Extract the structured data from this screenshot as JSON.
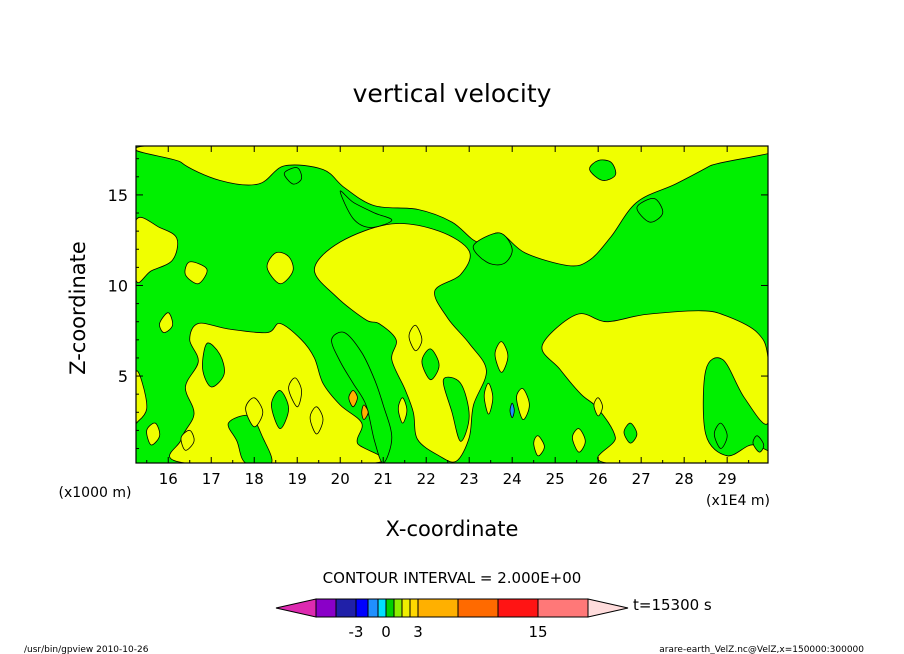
{
  "chart_data": {
    "type": "heatmap",
    "title": "vertical velocity",
    "xlabel": "X-coordinate",
    "ylabel": "Z-coordinate",
    "xlim": [
      15.25,
      29.95
    ],
    "ylim": [
      0.2,
      17.7
    ],
    "x_ticks": [
      16,
      17,
      18,
      19,
      20,
      21,
      22,
      23,
      24,
      25,
      26,
      27,
      28,
      29
    ],
    "y_ticks": [
      5,
      10,
      15
    ],
    "y_unit_note": "(x1000 m)",
    "x_unit_note": "(x1E4 m)",
    "contour_interval_text": "CONTOUR INTERVAL = 2.000E+00",
    "time_label": "t=15300 s",
    "footer_left": "/usr/bin/gpview   2010-10-26",
    "footer_right": "arare-earth_VelZ.nc@VelZ,x=150000:300000",
    "colorbar": {
      "colors": [
        "#dd2ab0",
        "#8a00c8",
        "#2020a8",
        "#0000ff",
        "#2090ff",
        "#00e0ff",
        "#00d000",
        "#8cee00",
        "#f0ee00",
        "#ffd800",
        "#ffb000",
        "#ff6a00",
        "#ff1414",
        "#ff7878",
        "#ffbcc6",
        "#ffdcdc"
      ],
      "tick_labels": [
        "-3",
        "0",
        "3",
        "15"
      ]
    },
    "field_colors": {
      "positive": "#f0ff00",
      "negative": "#00f000",
      "line": "#000000"
    },
    "regions": [
      {
        "sign": "positive",
        "points": [
          [
            16.2,
            17.8
          ],
          [
            16.3,
            16.8
          ],
          [
            17.2,
            15.8
          ],
          [
            18.1,
            15.6
          ],
          [
            18.7,
            16.6
          ],
          [
            19.6,
            16.4
          ],
          [
            20.1,
            15.4
          ],
          [
            20.8,
            14.4
          ],
          [
            21.8,
            14.2
          ],
          [
            22.6,
            13.5
          ],
          [
            23.2,
            12.4
          ],
          [
            23.7,
            12.9
          ],
          [
            24.3,
            11.8
          ],
          [
            25.3,
            11.1
          ],
          [
            25.8,
            11.4
          ],
          [
            26.3,
            12.7
          ],
          [
            26.9,
            14.6
          ],
          [
            27.8,
            15.6
          ],
          [
            28.6,
            16.6
          ],
          [
            29.5,
            17.8
          ]
        ]
      },
      {
        "sign": "positive",
        "points": [
          [
            16.7,
            7.9
          ],
          [
            17.4,
            7.6
          ],
          [
            18.3,
            7.4
          ],
          [
            18.6,
            7.9
          ],
          [
            19.1,
            7.0
          ],
          [
            19.4,
            6.0
          ],
          [
            19.6,
            4.6
          ],
          [
            20.0,
            3.4
          ],
          [
            20.5,
            2.4
          ],
          [
            20.4,
            1.3
          ],
          [
            20.8,
            0.2
          ],
          [
            16.4,
            0.2
          ],
          [
            16.3,
            1.5
          ],
          [
            16.6,
            2.9
          ],
          [
            16.4,
            4.4
          ],
          [
            16.7,
            5.8
          ],
          [
            16.5,
            7.0
          ]
        ]
      },
      {
        "sign": "positive",
        "points": [
          [
            19.4,
            10.9
          ],
          [
            19.9,
            9.4
          ],
          [
            20.6,
            8.1
          ],
          [
            20.9,
            7.9
          ],
          [
            21.3,
            7.0
          ],
          [
            21.2,
            5.9
          ],
          [
            21.5,
            4.3
          ],
          [
            21.7,
            3.0
          ],
          [
            21.8,
            1.5
          ],
          [
            22.3,
            0.6
          ],
          [
            22.7,
            0.3
          ],
          [
            23.0,
            1.6
          ],
          [
            23.1,
            3.4
          ],
          [
            23.4,
            5.3
          ],
          [
            23.0,
            6.8
          ],
          [
            22.5,
            8.2
          ],
          [
            22.2,
            9.7
          ],
          [
            22.8,
            10.6
          ],
          [
            23.0,
            11.9
          ],
          [
            22.3,
            13.0
          ],
          [
            21.2,
            13.4
          ],
          [
            20.0,
            12.4
          ]
        ]
      },
      {
        "sign": "positive",
        "points": [
          [
            25.5,
            8.4
          ],
          [
            26.2,
            8.0
          ],
          [
            27.1,
            8.4
          ],
          [
            28.4,
            8.6
          ],
          [
            29.0,
            8.3
          ],
          [
            29.7,
            7.4
          ],
          [
            29.95,
            6.0
          ],
          [
            29.95,
            2.4
          ],
          [
            29.4,
            3.8
          ],
          [
            28.9,
            5.9
          ],
          [
            28.5,
            5.3
          ],
          [
            28.5,
            1.8
          ],
          [
            29.0,
            0.6
          ],
          [
            29.6,
            1.2
          ],
          [
            29.95,
            0.2
          ],
          [
            26.2,
            0.2
          ],
          [
            26.4,
            1.6
          ],
          [
            26.0,
            3.2
          ],
          [
            25.6,
            4.0
          ],
          [
            25.1,
            5.4
          ],
          [
            24.7,
            6.7
          ]
        ]
      },
      {
        "sign": "positive",
        "points": [
          [
            15.25,
            13.6
          ],
          [
            15.8,
            13.2
          ],
          [
            16.2,
            12.6
          ],
          [
            16.1,
            11.4
          ],
          [
            15.6,
            10.8
          ],
          [
            15.25,
            10.3
          ]
        ]
      },
      {
        "sign": "positive",
        "points": [
          [
            18.5,
            11.8
          ],
          [
            18.3,
            11.0
          ],
          [
            18.6,
            10.1
          ],
          [
            18.9,
            10.8
          ],
          [
            18.8,
            11.6
          ]
        ]
      },
      {
        "sign": "positive",
        "points": [
          [
            16.5,
            11.3
          ],
          [
            16.4,
            10.6
          ],
          [
            16.7,
            10.1
          ],
          [
            16.9,
            10.9
          ]
        ]
      },
      {
        "sign": "negative",
        "points": [
          [
            20.0,
            15.2
          ],
          [
            20.3,
            14.6
          ],
          [
            20.8,
            14.0
          ],
          [
            21.2,
            13.6
          ],
          [
            20.7,
            13.2
          ],
          [
            20.3,
            13.7
          ]
        ]
      },
      {
        "sign": "negative",
        "points": [
          [
            18.7,
            16.2
          ],
          [
            18.9,
            15.6
          ],
          [
            19.1,
            15.9
          ],
          [
            19.0,
            16.5
          ]
        ]
      },
      {
        "sign": "negative",
        "points": [
          [
            25.8,
            16.4
          ],
          [
            26.1,
            15.8
          ],
          [
            26.4,
            16.1
          ],
          [
            26.3,
            16.8
          ],
          [
            26.0,
            16.9
          ]
        ]
      },
      {
        "sign": "negative",
        "points": [
          [
            23.1,
            12.2
          ],
          [
            23.4,
            11.3
          ],
          [
            23.8,
            11.2
          ],
          [
            24.0,
            12.0
          ],
          [
            23.7,
            12.9
          ]
        ]
      },
      {
        "sign": "negative",
        "points": [
          [
            26.9,
            14.3
          ],
          [
            27.2,
            13.5
          ],
          [
            27.5,
            14.0
          ],
          [
            27.3,
            14.8
          ]
        ]
      },
      {
        "sign": "negative",
        "points": [
          [
            20.0,
            5.8
          ],
          [
            20.3,
            4.6
          ],
          [
            20.6,
            3.4
          ],
          [
            20.8,
            1.4
          ],
          [
            21.0,
            0.2
          ],
          [
            21.2,
            1.6
          ],
          [
            21.0,
            3.4
          ],
          [
            20.8,
            4.8
          ],
          [
            20.5,
            6.3
          ],
          [
            20.1,
            7.4
          ],
          [
            19.8,
            7.0
          ]
        ]
      },
      {
        "sign": "negative",
        "points": [
          [
            16.9,
            6.8
          ],
          [
            17.2,
            6.2
          ],
          [
            17.3,
            5.1
          ],
          [
            17.0,
            4.4
          ],
          [
            16.8,
            5.4
          ]
        ]
      },
      {
        "sign": "negative",
        "points": [
          [
            17.4,
            2.4
          ],
          [
            17.6,
            1.4
          ],
          [
            17.8,
            0.2
          ],
          [
            18.4,
            0.2
          ],
          [
            18.2,
            1.6
          ],
          [
            17.9,
            2.8
          ]
        ]
      },
      {
        "sign": "negative",
        "points": [
          [
            22.4,
            4.8
          ],
          [
            22.6,
            3.0
          ],
          [
            22.8,
            1.4
          ],
          [
            23.0,
            2.8
          ],
          [
            22.8,
            4.6
          ]
        ]
      },
      {
        "sign": "negative",
        "points": [
          [
            18.4,
            3.4
          ],
          [
            18.6,
            2.1
          ],
          [
            18.8,
            3.2
          ],
          [
            18.6,
            4.2
          ]
        ]
      },
      {
        "sign": "negative",
        "points": [
          [
            21.9,
            5.8
          ],
          [
            22.1,
            4.8
          ],
          [
            22.3,
            5.6
          ],
          [
            22.1,
            6.5
          ]
        ]
      },
      {
        "sign": "positive",
        "points": [
          [
            15.25,
            5.2
          ],
          [
            15.4,
            4.6
          ],
          [
            15.5,
            3.2
          ],
          [
            15.3,
            2.5
          ],
          [
            15.25,
            2.7
          ]
        ]
      },
      {
        "sign": "positive",
        "points": [
          [
            15.5,
            2.0
          ],
          [
            15.6,
            1.2
          ],
          [
            15.8,
            1.7
          ],
          [
            15.7,
            2.4
          ]
        ]
      },
      {
        "sign": "positive",
        "points": [
          [
            15.8,
            7.9
          ],
          [
            15.9,
            7.4
          ],
          [
            16.1,
            7.8
          ],
          [
            16.0,
            8.5
          ]
        ]
      },
      {
        "sign": "positive",
        "points": [
          [
            16.3,
            1.6
          ],
          [
            16.4,
            0.9
          ],
          [
            16.6,
            1.4
          ],
          [
            16.5,
            2.0
          ]
        ]
      },
      {
        "sign": "positive",
        "points": [
          [
            17.8,
            3.2
          ],
          [
            18.0,
            2.2
          ],
          [
            18.2,
            3.0
          ],
          [
            18.0,
            3.8
          ]
        ]
      },
      {
        "sign": "positive",
        "points": [
          [
            18.8,
            4.3
          ],
          [
            19.0,
            3.3
          ],
          [
            19.1,
            4.2
          ],
          [
            18.95,
            4.9
          ]
        ]
      },
      {
        "sign": "positive",
        "points": [
          [
            19.3,
            2.7
          ],
          [
            19.45,
            1.8
          ],
          [
            19.6,
            2.6
          ],
          [
            19.45,
            3.3
          ]
        ]
      },
      {
        "sign": "positive",
        "points": [
          [
            21.6,
            7.2
          ],
          [
            21.75,
            6.4
          ],
          [
            21.9,
            7.0
          ],
          [
            21.75,
            7.8
          ]
        ]
      },
      {
        "sign": "positive",
        "points": [
          [
            21.35,
            3.2
          ],
          [
            21.45,
            2.4
          ],
          [
            21.55,
            3.1
          ],
          [
            21.45,
            3.8
          ]
        ]
      },
      {
        "sign": "positive",
        "points": [
          [
            23.6,
            6.2
          ],
          [
            23.75,
            5.2
          ],
          [
            23.9,
            6.1
          ],
          [
            23.75,
            6.9
          ]
        ]
      },
      {
        "sign": "positive",
        "points": [
          [
            23.35,
            3.9
          ],
          [
            23.45,
            2.9
          ],
          [
            23.55,
            3.8
          ],
          [
            23.45,
            4.6
          ]
        ]
      },
      {
        "sign": "positive",
        "points": [
          [
            24.1,
            3.8
          ],
          [
            24.25,
            2.6
          ],
          [
            24.4,
            3.4
          ],
          [
            24.25,
            4.3
          ]
        ]
      },
      {
        "sign": "positive",
        "points": [
          [
            24.5,
            1.3
          ],
          [
            24.6,
            0.6
          ],
          [
            24.75,
            1.1
          ],
          [
            24.6,
            1.7
          ]
        ]
      },
      {
        "sign": "positive",
        "points": [
          [
            25.4,
            1.6
          ],
          [
            25.55,
            0.8
          ],
          [
            25.7,
            1.4
          ],
          [
            25.55,
            2.1
          ]
        ]
      },
      {
        "sign": "positive",
        "points": [
          [
            25.9,
            3.4
          ],
          [
            26.0,
            2.8
          ],
          [
            26.1,
            3.3
          ],
          [
            26.0,
            3.8
          ]
        ]
      },
      {
        "sign": "negative",
        "points": [
          [
            28.7,
            1.8
          ],
          [
            28.85,
            1.0
          ],
          [
            29.0,
            1.7
          ],
          [
            28.85,
            2.4
          ]
        ]
      },
      {
        "sign": "negative",
        "points": [
          [
            29.6,
            1.3
          ],
          [
            29.75,
            0.8
          ],
          [
            29.85,
            1.2
          ],
          [
            29.7,
            1.7
          ]
        ]
      },
      {
        "sign": "negative",
        "points": [
          [
            26.6,
            1.9
          ],
          [
            26.75,
            1.3
          ],
          [
            26.9,
            1.8
          ],
          [
            26.75,
            2.4
          ]
        ]
      }
    ],
    "strong_cells": [
      {
        "color": "#ffb000",
        "points": [
          [
            20.2,
            3.8
          ],
          [
            20.3,
            3.3
          ],
          [
            20.4,
            3.8
          ],
          [
            20.3,
            4.2
          ]
        ]
      },
      {
        "color": "#ffb000",
        "points": [
          [
            20.5,
            3.0
          ],
          [
            20.55,
            2.6
          ],
          [
            20.65,
            3.0
          ],
          [
            20.55,
            3.4
          ]
        ]
      },
      {
        "color": "#2090ff",
        "points": [
          [
            23.95,
            3.1
          ],
          [
            24.0,
            2.7
          ],
          [
            24.05,
            3.1
          ],
          [
            24.0,
            3.5
          ]
        ]
      }
    ]
  }
}
